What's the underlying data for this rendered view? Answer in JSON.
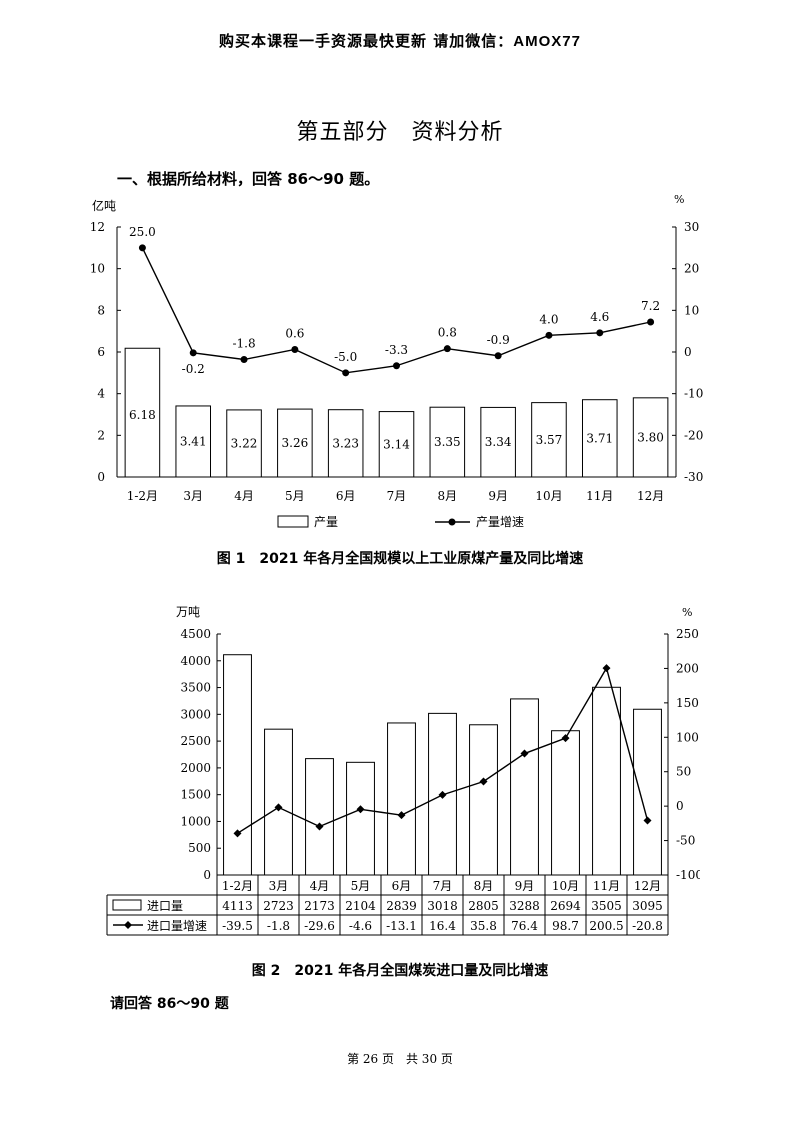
{
  "banner": {
    "text": "购买本课程一手资源最快更新 请加微信：",
    "code": "AMOX77"
  },
  "section_title": "第五部分　资料分析",
  "question_head": "一、根据所给材料，回答 86～90 题。",
  "captions": {
    "fig1": "图 1　2021 年各月全国规模以上工业原煤产量及同比增速",
    "fig2": "图 2　2021 年各月全国煤炭进口量及同比增速"
  },
  "prompt": "请回答 86～90 题",
  "footer": "第 26 页　共 30 页",
  "chart_data": [
    {
      "type": "bar",
      "categories": [
        "1-2月",
        "3月",
        "4月",
        "5月",
        "6月",
        "7月",
        "8月",
        "9月",
        "10月",
        "11月",
        "12月"
      ],
      "series": [
        {
          "name": "产量",
          "kind": "bar",
          "axis": "left",
          "values": [
            6.18,
            3.41,
            3.22,
            3.26,
            3.23,
            3.14,
            3.35,
            3.34,
            3.57,
            3.71,
            3.8
          ],
          "labels": [
            "6.18",
            "3.41",
            "3.22",
            "3.26",
            "3.23",
            "3.14",
            "3.35",
            "3.34",
            "3.57",
            "3.71",
            "3.80"
          ]
        },
        {
          "name": "产量增速",
          "kind": "line",
          "axis": "right",
          "values": [
            25.0,
            -0.2,
            -1.8,
            0.6,
            -5.0,
            -3.3,
            0.8,
            -0.9,
            4.0,
            4.6,
            7.2
          ],
          "labels": [
            "25.0",
            "-0.2",
            "-1.8",
            "0.6",
            "-5.0",
            "-3.3",
            "0.8",
            "-0.9",
            "4.0",
            "4.6",
            "7.2"
          ]
        }
      ],
      "ylabel": "亿吨",
      "y2label": "%",
      "ylim": [
        0,
        12
      ],
      "yticks": [
        "0",
        "2",
        "4",
        "6",
        "8",
        "10",
        "12"
      ],
      "y2lim": [
        -30,
        30
      ],
      "y2ticks": [
        "-30",
        "-20",
        "-10",
        "0",
        "10",
        "20",
        "30"
      ],
      "legend": "bottom"
    },
    {
      "type": "bar",
      "categories": [
        "1-2月",
        "3月",
        "4月",
        "5月",
        "6月",
        "7月",
        "8月",
        "9月",
        "10月",
        "11月",
        "12月"
      ],
      "series": [
        {
          "name": "进口量",
          "kind": "bar",
          "axis": "left",
          "values": [
            4113,
            2723,
            2173,
            2104,
            2839,
            3018,
            2805,
            3288,
            2694,
            3505,
            3095
          ],
          "labels": [
            "4113",
            "2723",
            "2173",
            "2104",
            "2839",
            "3018",
            "2805",
            "3288",
            "2694",
            "3505",
            "3095"
          ]
        },
        {
          "name": "进口量增速",
          "kind": "line",
          "axis": "right",
          "values": [
            -39.5,
            -1.8,
            -29.6,
            -4.6,
            -13.1,
            16.4,
            35.8,
            76.4,
            98.7,
            200.5,
            -20.8
          ],
          "labels": [
            "-39.5",
            "-1.8",
            "-29.6",
            "-4.6",
            "-13.1",
            "16.4",
            "35.8",
            "76.4",
            "98.7",
            "200.5",
            "-20.8"
          ]
        }
      ],
      "ylabel": "万吨",
      "y2label": "%",
      "ylim": [
        0,
        4500
      ],
      "yticks": [
        "0",
        "500",
        "1000",
        "1500",
        "2000",
        "2500",
        "3000",
        "3500",
        "4000",
        "4500"
      ],
      "y2lim": [
        -100,
        250
      ],
      "y2ticks": [
        "-100",
        "-50",
        "0",
        "50",
        "100",
        "150",
        "200",
        "250"
      ],
      "legend": "data table"
    }
  ]
}
